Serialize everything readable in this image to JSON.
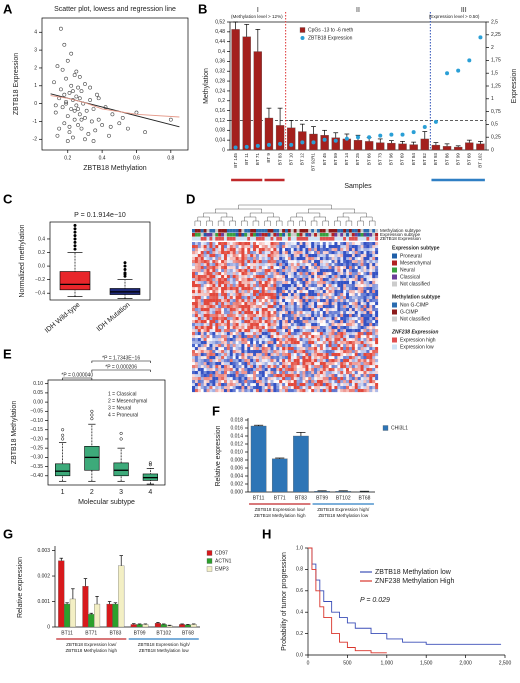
{
  "chart_data": [
    {
      "panel": "A",
      "type": "scatter",
      "title": "Scatter plot, lowess and regression line",
      "xlabel": "ZBTB18 Methylation",
      "ylabel": "ZBTB18 Expression",
      "color": "#444444",
      "x": [
        0.12,
        0.13,
        0.14,
        0.15,
        0.15,
        0.16,
        0.17,
        0.17,
        0.18,
        0.18,
        0.19,
        0.19,
        0.2,
        0.2,
        0.21,
        0.21,
        0.22,
        0.22,
        0.23,
        0.23,
        0.24,
        0.24,
        0.25,
        0.25,
        0.26,
        0.26,
        0.27,
        0.27,
        0.28,
        0.28,
        0.29,
        0.3,
        0.3,
        0.31,
        0.32,
        0.33,
        0.34,
        0.35,
        0.36,
        0.37,
        0.38,
        0.4,
        0.42,
        0.44,
        0.46,
        0.5,
        0.55,
        0.6,
        0.65,
        0.18,
        0.2,
        0.22,
        0.25,
        0.3,
        0.16,
        0.14,
        0.21,
        0.27,
        0.33,
        0.35,
        0.24,
        0.19,
        0.23,
        0.28,
        0.38,
        0.45,
        0.52,
        0.8,
        0.13,
        0.26
      ],
      "y": [
        1.2,
        -0.5,
        2.1,
        0.3,
        -1.4,
        0.8,
        1.9,
        -0.2,
        0.5,
        -1.1,
        1.4,
        0.1,
        -0.7,
        2.4,
        0.6,
        -1.6,
        1.0,
        -0.3,
        0.2,
        -1.9,
        1.6,
        -0.9,
        0.4,
        -0.1,
        -1.2,
        0.9,
        0.3,
        -0.6,
        -1.4,
        0.7,
        0.0,
        -0.8,
        1.1,
        -0.4,
        -1.7,
        0.2,
        -1.0,
        -0.3,
        -1.5,
        0.5,
        -0.9,
        -1.2,
        -0.2,
        -1.8,
        -0.6,
        -1.1,
        -1.4,
        -0.5,
        -1.6,
        3.3,
        -2.1,
        2.8,
        1.8,
        -2.0,
        4.2,
        -1.8,
        -1.3,
        1.5,
        0.9,
        -2.1,
        -0.4,
        0.0,
        0.7,
        -0.9,
        0.3,
        -1.3,
        -0.8,
        -0.9,
        -0.1,
        -0.3
      ],
      "fit_lines": [
        {
          "x": [
            0.1,
            0.85
          ],
          "y": [
            0.55,
            -1.3
          ],
          "color": "#222222"
        },
        {
          "x": [
            0.1,
            0.2,
            0.3,
            0.4,
            0.6,
            0.85
          ],
          "y": [
            0.45,
            0.3,
            0.05,
            -0.3,
            -0.6,
            -0.75
          ],
          "color": "#e59a8a"
        }
      ],
      "xlim": [
        0.05,
        0.9
      ],
      "ylim": [
        -2.6,
        4.8
      ],
      "xticks": [
        0.2,
        0.4,
        0.6,
        0.8
      ],
      "yticks": [
        -2,
        -1,
        0,
        1,
        2,
        3,
        4
      ]
    },
    {
      "panel": "B",
      "type": "bar",
      "xlabel": "Samples",
      "ylabel": "Methylation",
      "y2label": "Expression",
      "categories": [
        "BT 145",
        "BT 11",
        "BT 71",
        "BT 9",
        "BT 83",
        "BT 10",
        "BT 12",
        "BT 92R1",
        "BT 45",
        "BT 59",
        "BT 14",
        "BT 25",
        "BT 66",
        "BT 73",
        "BT 96",
        "BT 69",
        "BT 84",
        "BT 82",
        "BT 93",
        "BT 86",
        "BT 99",
        "BT 68",
        "BT 102"
      ],
      "series": [
        {
          "name": "CpGs -13 to -6 meth",
          "color": "#a3201d",
          "values": [
            0.49,
            0.46,
            0.4,
            0.13,
            0.1,
            0.09,
            0.075,
            0.065,
            0.06,
            0.05,
            0.045,
            0.04,
            0.035,
            0.03,
            0.028,
            0.025,
            0.022,
            0.045,
            0.02,
            0.015,
            0.012,
            0.03,
            0.025
          ],
          "errors": [
            0.03,
            0.05,
            0.09,
            0.04,
            0.07,
            0.03,
            0.03,
            0.03,
            0.02,
            0.02,
            0.02,
            0.02,
            0.015,
            0.015,
            0.01,
            0.01,
            0.01,
            0.03,
            0.01,
            0.01,
            0.005,
            0.01,
            0.01
          ]
        },
        {
          "name": "ZBTB18 Expression",
          "color": "#2a9fd6",
          "axis": "y2",
          "values": [
            0.05,
            0.06,
            0.08,
            0.1,
            0.12,
            0.1,
            0.15,
            0.15,
            0.2,
            0.18,
            0.22,
            0.25,
            0.25,
            0.28,
            0.3,
            0.3,
            0.35,
            0.45,
            0.55,
            1.5,
            1.55,
            1.75,
            2.2
          ]
        }
      ],
      "threshold": 0.12,
      "regions": [
        {
          "label": "I",
          "note": "(Methylation level > 12%)"
        },
        {
          "label": "II"
        },
        {
          "label": "III",
          "note": "(Expression level > 0.50)"
        }
      ],
      "ylim": [
        0,
        0.52
      ],
      "yticks": [
        0,
        {
          "value": 0.04,
          "label": "0,04"
        },
        {
          "value": 0.08,
          "label": "0,08"
        },
        {
          "value": 0.12,
          "label": "0,12"
        },
        {
          "value": 0.16,
          "label": "0,16"
        },
        {
          "value": 0.2,
          "label": "0,2"
        },
        {
          "value": 0.24,
          "label": "0,24"
        },
        {
          "value": 0.28,
          "label": "0,28"
        },
        {
          "value": 0.32,
          "label": "0,32"
        },
        {
          "value": 0.36,
          "label": "0,36"
        },
        {
          "value": 0.4,
          "label": "0,4"
        },
        {
          "value": 0.44,
          "label": "0,44"
        },
        {
          "value": 0.48,
          "label": "0,48"
        },
        {
          "value": 0.52,
          "label": "0,52"
        }
      ],
      "y2lim": [
        0,
        2.5
      ],
      "y2ticks": [
        0,
        {
          "value": 0.25,
          "label": "0,25"
        },
        {
          "value": 0.5,
          "label": "0,5"
        },
        {
          "value": 0.75,
          "label": "0,75"
        },
        1,
        {
          "value": 1.25,
          "label": "1,25"
        },
        {
          "value": 1.5,
          "label": "1,5"
        },
        {
          "value": 1.75,
          "label": "1,75"
        },
        2,
        {
          "value": 2.25,
          "label": "2,25"
        },
        {
          "value": 2.5,
          "label": "2,5"
        }
      ]
    },
    {
      "panel": "C",
      "type": "box",
      "title": "P = 0.1.914e−10",
      "ylabel": "Normalized methylation",
      "categories": [
        "IDH Wild-type",
        "IDH Mutation"
      ],
      "boxes": [
        {
          "min": -0.45,
          "q1": -0.35,
          "median": -0.27,
          "q3": -0.08,
          "max": 0.2,
          "outliers": [
            0.25,
            0.3,
            0.35,
            0.4,
            0.45,
            0.5,
            0.55,
            0.6
          ],
          "color": "#e8262b"
        },
        {
          "min": -0.48,
          "q1": -0.42,
          "median": -0.38,
          "q3": -0.33,
          "max": -0.2,
          "outliers": [
            -0.15,
            -0.12,
            -0.1,
            -0.05,
            0,
            0.05
          ],
          "color": "#1f2a7a"
        }
      ],
      "ylim": [
        -0.5,
        0.65
      ],
      "yticks": [
        {
          "value": -0.4,
          "label": "−0.4"
        },
        {
          "value": -0.2,
          "label": "−0.2"
        },
        {
          "value": 0,
          "label": "0.0"
        },
        0.2,
        0.4
      ]
    },
    {
      "panel": "D",
      "type": "heatmap",
      "row_labels": [
        "Methylation subtype",
        "Expression subtype",
        "ZBTB18 Expression"
      ],
      "legend": [
        {
          "title": "Expression subtype",
          "items": [
            {
              "label": "Proneural",
              "color": "#1f5fa8"
            },
            {
              "label": "Mesenchymal",
              "color": "#b22222"
            },
            {
              "label": "Neural",
              "color": "#3aa040"
            },
            {
              "label": "Classical",
              "color": "#6a3d9a"
            },
            {
              "label": "Not classified",
              "color": "#cccccc"
            }
          ]
        },
        {
          "title": "Methylation subtype",
          "items": [
            {
              "label": "Non G-CIMP",
              "color": "#2b6cb0"
            },
            {
              "label": "G-CIMP",
              "color": "#8b1a1a"
            },
            {
              "label": "Not classified",
              "color": "#cccccc"
            }
          ]
        },
        {
          "title": "ZNF238 Expression",
          "items": [
            {
              "label": "Expression high",
              "color": "#e05050"
            },
            {
              "label": "Expression low",
              "color": "#cfe3f5"
            }
          ]
        }
      ]
    },
    {
      "panel": "E",
      "type": "box",
      "ylabel": "ZBTB18 Methylation",
      "xlabel": "Molecular subtype",
      "color": "#3daa7a",
      "categories": [
        "1",
        "2",
        "3",
        "4"
      ],
      "legend": [
        "1 = Classical",
        "2 = Mesenchymal",
        "3 = Neural",
        "4 = Proneural"
      ],
      "annotations": [
        "*P = 0.000040",
        "*P = 0.000206",
        "*P = 1.7343E−16"
      ],
      "boxes": [
        {
          "min": -0.43,
          "q1": -0.4,
          "median": -0.375,
          "q3": -0.335,
          "max": -0.22,
          "outliers": [
            -0.2,
            -0.18,
            -0.15
          ]
        },
        {
          "min": -0.43,
          "q1": -0.37,
          "median": -0.3,
          "q3": -0.24,
          "max": -0.12,
          "outliers": [
            -0.09,
            -0.07,
            -0.05
          ]
        },
        {
          "min": -0.43,
          "q1": -0.4,
          "median": -0.37,
          "q3": -0.33,
          "max": -0.25,
          "outliers": [
            -0.2,
            -0.17
          ]
        },
        {
          "min": -0.445,
          "q1": -0.425,
          "median": -0.41,
          "q3": -0.39,
          "max": -0.36,
          "outliers": [
            -0.34,
            -0.33
          ]
        }
      ],
      "ylim": [
        -0.45,
        0.12
      ],
      "yticks": [
        {
          "value": -0.4,
          "label": "−0.40"
        },
        {
          "value": -0.35,
          "label": "−0.35"
        },
        {
          "value": -0.3,
          "label": "−0.30"
        },
        {
          "value": -0.25,
          "label": "−0.25"
        },
        {
          "value": -0.2,
          "label": "−0.20"
        },
        {
          "value": -0.15,
          "label": "−0.15"
        },
        {
          "value": -0.1,
          "label": "−0.10"
        },
        {
          "value": -0.05,
          "label": "−0.05"
        },
        {
          "value": 0,
          "label": "0.00"
        },
        {
          "value": 0.05,
          "label": "0.05"
        },
        {
          "value": 0.1,
          "label": "0.10"
        }
      ]
    },
    {
      "panel": "F",
      "type": "bar",
      "ylabel": "Relative expression",
      "categories": [
        "BT11",
        "BT71",
        "BT83",
        "BT99",
        "BT102",
        "BT68"
      ],
      "series": [
        {
          "name": "CHI3L1",
          "color": "#2e75b6",
          "values": [
            0.0165,
            0.0083,
            0.014,
            0.0002,
            0.0002,
            0.0001
          ],
          "errors": [
            0.0002,
            0.0002,
            0.0009,
            0.0001,
            0.0001,
            0.0001
          ]
        }
      ],
      "groups": [
        [
          "ZBTB18 Expression low/",
          "ZBTB18 Methylation high"
        ],
        [
          "ZBTB18 Expression high/",
          "ZBTB18 Methylation low"
        ]
      ],
      "ylim": [
        0,
        0.018
      ],
      "yticks": [
        {
          "value": 0,
          "label": "0.000"
        },
        0.002,
        0.004,
        0.006,
        0.008,
        {
          "value": 0.01,
          "label": "0.010"
        },
        0.012,
        0.014,
        0.016,
        0.018
      ]
    },
    {
      "panel": "G",
      "type": "bar",
      "ylabel": "Relative expression",
      "categories": [
        "BT11",
        "BT71",
        "BT83",
        "BT99",
        "BT102",
        "BT68"
      ],
      "series": [
        {
          "name": "CD97",
          "color": "#d7191c",
          "values": [
            0.0026,
            0.0016,
            0.0009,
            0.0001,
            0.00015,
            0.0001
          ],
          "errors": [
            0.0001,
            0.0003,
            0.0001,
            3e-05,
            3e-05,
            2e-05
          ]
        },
        {
          "name": "ACTN1",
          "color": "#2ca02c",
          "values": [
            0.0009,
            0.0005,
            0.0009,
            0.0001,
            0.0001,
            8e-05
          ],
          "errors": [
            5e-05,
            4e-05,
            5e-05,
            2e-05,
            2e-05,
            2e-05
          ]
        },
        {
          "name": "EMP3",
          "color": "#f3efc4",
          "values": [
            0.0011,
            0.0009,
            0.0024,
            0.0001,
            5e-05,
            0.0001
          ],
          "errors": [
            0.0004,
            0.0003,
            0.0004,
            2e-05,
            2e-05,
            2e-05
          ]
        }
      ],
      "groups": [
        [
          "ZBTB18 Expression low/",
          "ZBTB18 Methylation high"
        ],
        [
          "ZBTB18 Expression high/",
          "ZBTB18 Methylation low"
        ]
      ],
      "ylim": [
        0,
        0.0031
      ],
      "yticks": [
        0,
        0.001,
        0.002,
        0.003
      ]
    },
    {
      "panel": "H",
      "type": "line",
      "ylabel": "Probability of tumor progression",
      "annotation": "P = 0.029",
      "series": [
        {
          "name": "ZBTB18 Methylation low",
          "color": "#3b4fb8",
          "x": [
            0,
            50,
            100,
            150,
            200,
            300,
            400,
            500,
            600,
            800,
            1000,
            1200,
            1500,
            1800,
            2200,
            2450
          ],
          "values": [
            1,
            0.85,
            0.7,
            0.6,
            0.5,
            0.4,
            0.35,
            0.3,
            0.25,
            0.2,
            0.15,
            0.12,
            0.1,
            0.1,
            0.1,
            0.1
          ]
        },
        {
          "name": "ZNF238 Methylation High",
          "color": "#d9342b",
          "x": [
            0,
            50,
            100,
            150,
            200,
            300,
            400,
            500,
            600,
            800,
            1000
          ],
          "values": [
            1,
            0.8,
            0.6,
            0.45,
            0.35,
            0.2,
            0.12,
            0.07,
            0.04,
            0.02,
            0.02
          ]
        }
      ],
      "xlim": [
        0,
        2500
      ],
      "ylim": [
        0,
        1
      ],
      "xticks": [
        0,
        500,
        {
          "value": 1000,
          "label": "1,000"
        },
        {
          "value": 1500,
          "label": "1,500"
        },
        {
          "value": 2000,
          "label": "2,000"
        },
        {
          "value": 2500,
          "label": "2,500"
        }
      ],
      "yticks": [
        {
          "value": 0,
          "label": "0.0"
        },
        0.2,
        0.4,
        0.6,
        0.8,
        {
          "value": 1,
          "label": "1.0"
        }
      ]
    }
  ]
}
